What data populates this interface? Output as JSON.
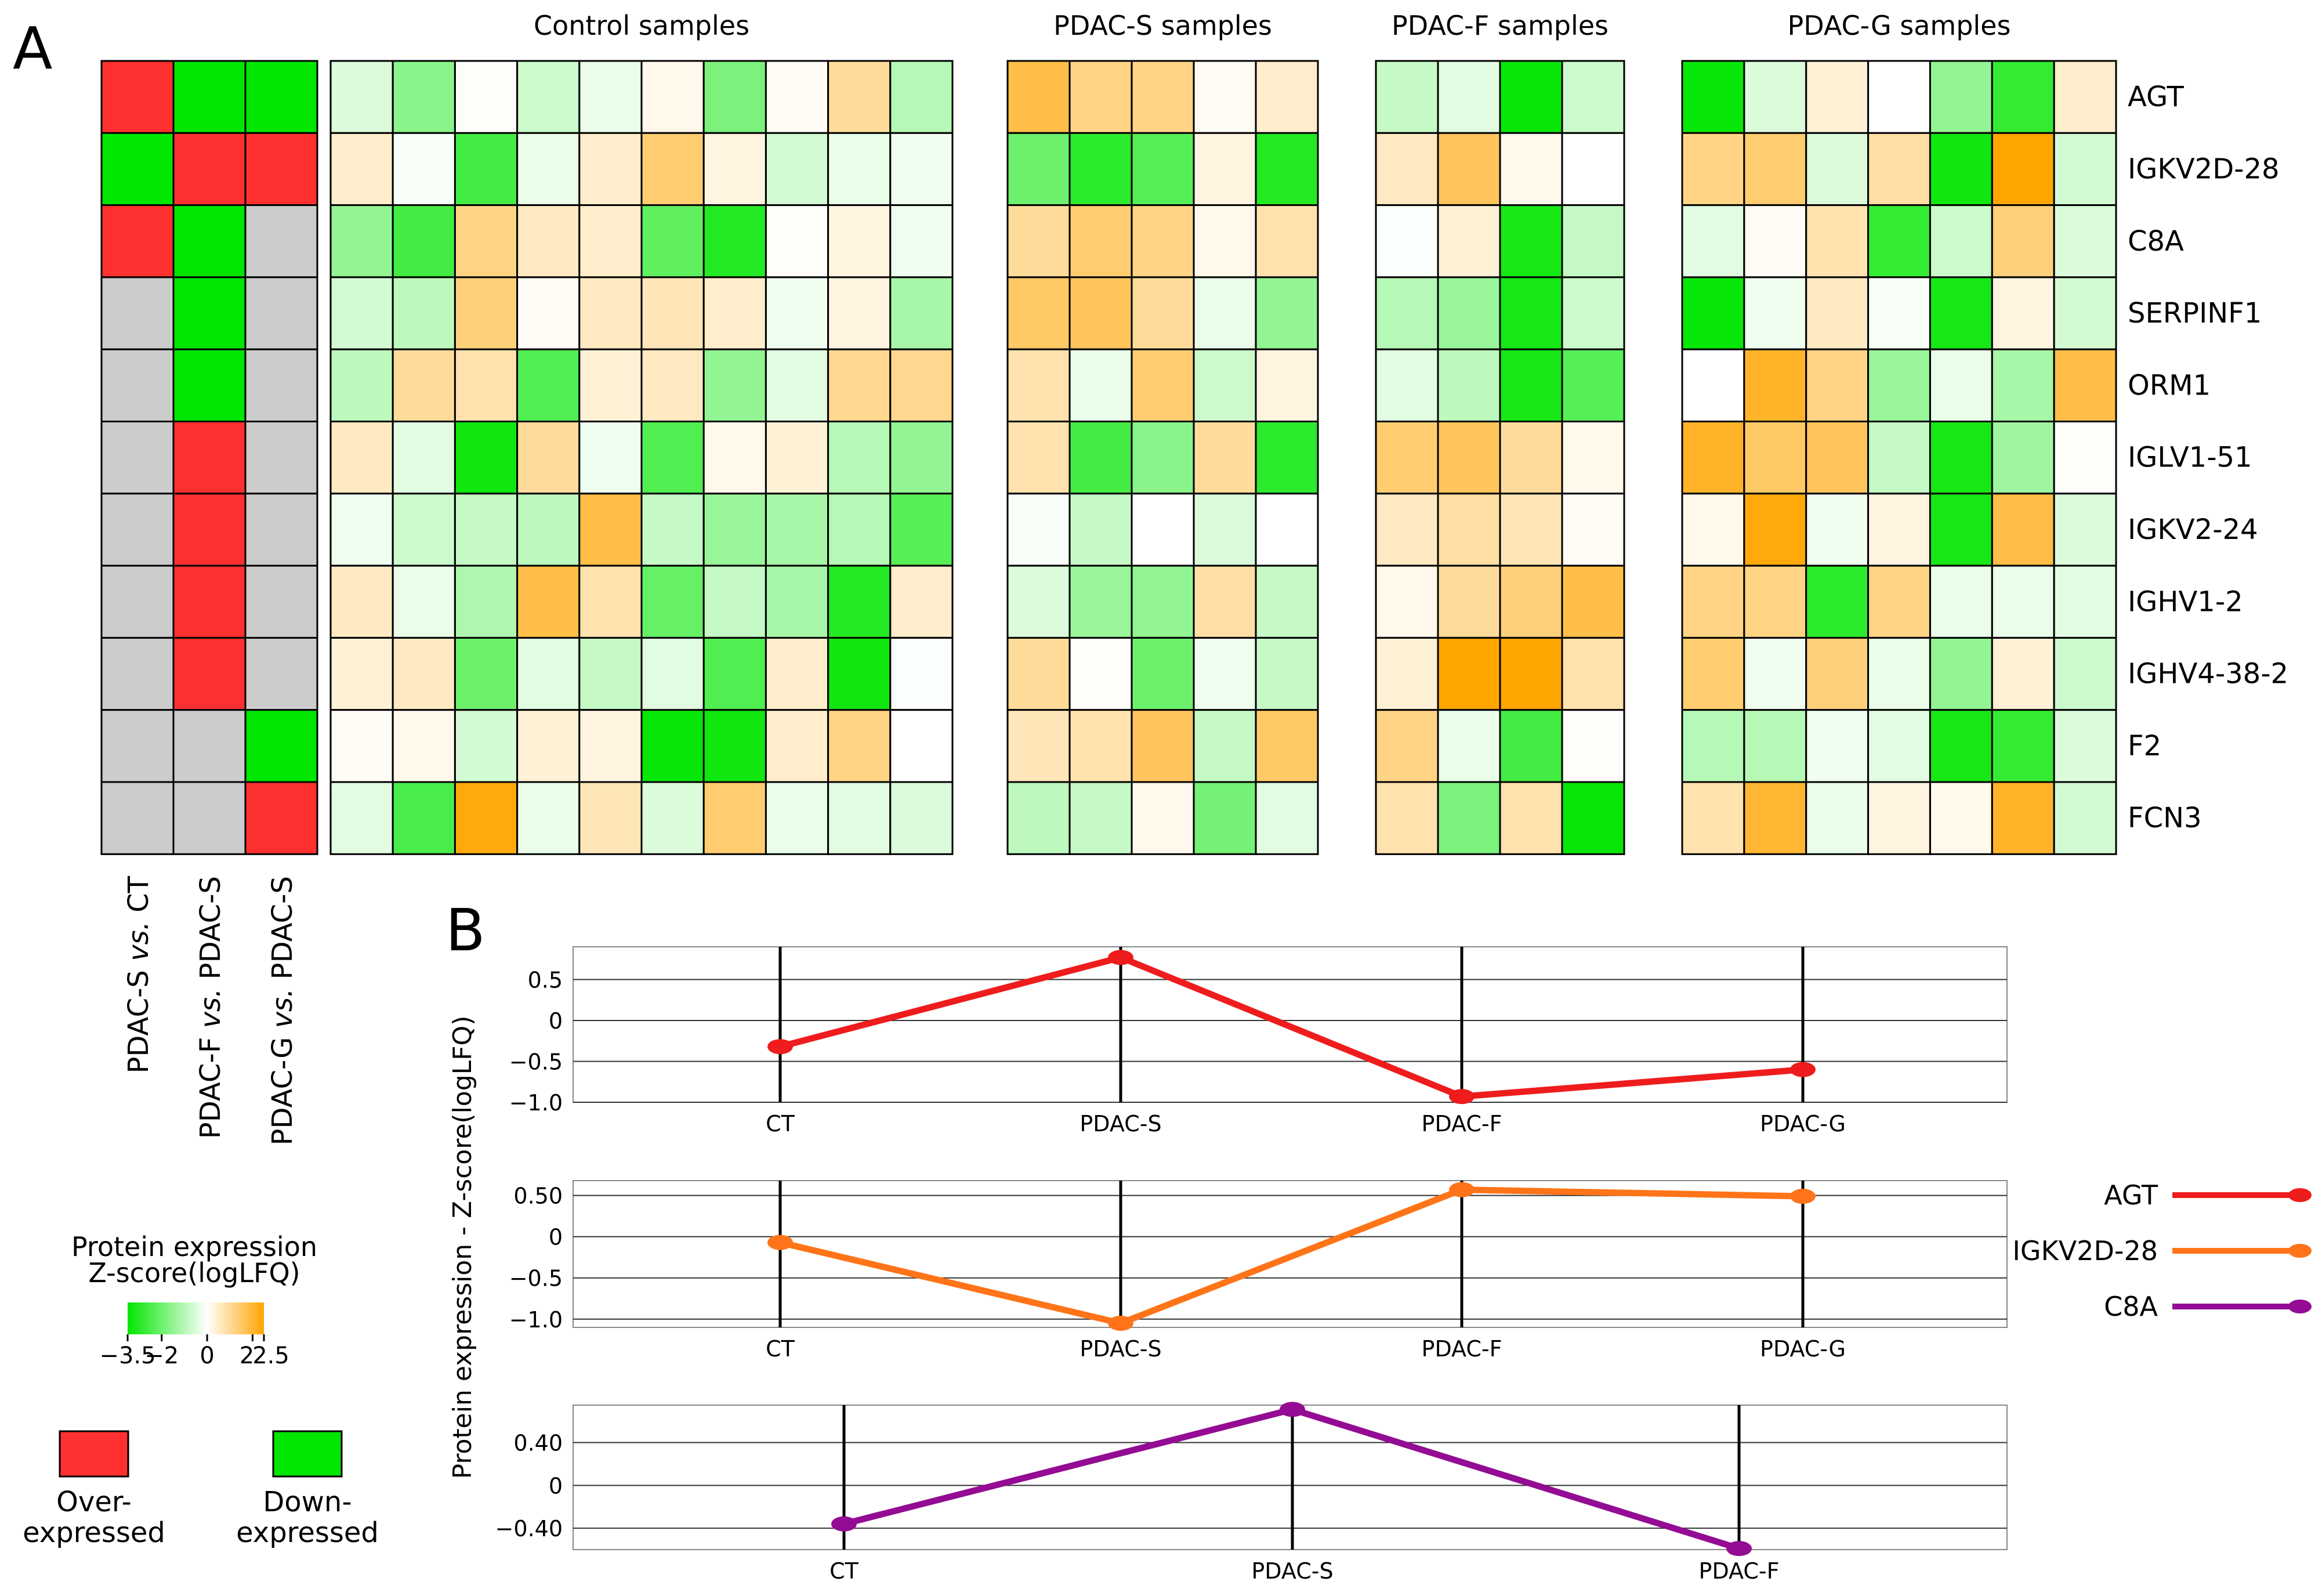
{
  "panel_labels": {
    "a": "A",
    "b": "B"
  },
  "colors": {
    "over": "#ff3030",
    "down": "#00e600",
    "neutral": "#cccccc",
    "agt": "#ee1c1c",
    "igkv": "#ff7418",
    "c8a": "#930c93",
    "green_strong": "#00ff00",
    "orange_strong": "#ffa500"
  },
  "legend": {
    "title_line1": "Protein expression",
    "title_line2": "Z-score(logLFQ)",
    "colorbar_ticks": [
      "−3.5",
      "−2",
      "0",
      "2",
      "2.5"
    ],
    "over_label_1": "Over-",
    "over_label_2": "expressed",
    "down_label_1": "Down-",
    "down_label_2": "expressed"
  },
  "comparisons": [
    {
      "a": "PDAC-S ",
      "vs": "vs.",
      "b": " CT"
    },
    {
      "a": "PDAC-F ",
      "vs": "vs.",
      "b": " PDAC-S"
    },
    {
      "a": "PDAC-G ",
      "vs": "vs.",
      "b": " PDAC-S"
    }
  ],
  "status_rows": [
    [
      "over",
      "down",
      "down"
    ],
    [
      "down",
      "over",
      "over"
    ],
    [
      "over",
      "down",
      "none"
    ],
    [
      "none",
      "down",
      "none"
    ],
    [
      "none",
      "down",
      "none"
    ],
    [
      "none",
      "over",
      "none"
    ],
    [
      "none",
      "over",
      "none"
    ],
    [
      "none",
      "over",
      "none"
    ],
    [
      "none",
      "over",
      "none"
    ],
    [
      "none",
      "none",
      "down"
    ],
    [
      "none",
      "none",
      "over"
    ]
  ],
  "chart_data": [
    {
      "type": "heatmap",
      "title": "Protein expression Z-score(logLFQ)",
      "color_range": [
        -3.5,
        2.5
      ],
      "proteins": [
        "AGT",
        "IGKV2D-28",
        "C8A",
        "SERPINF1",
        "ORM1",
        "IGLV1-51",
        "IGKV2-24",
        "IGHV1-2",
        "IGHV4-38-2",
        "F2",
        "FCN3"
      ],
      "groups": [
        {
          "name": "Control samples",
          "values": [
            [
              -0.5,
              -1.6,
              0.05,
              -0.7,
              -0.3,
              0.2,
              -1.8,
              0.1,
              1.0,
              -1.0
            ],
            [
              0.5,
              -0.1,
              -2.6,
              -0.3,
              0.5,
              1.4,
              0.3,
              -0.6,
              -0.3,
              -0.2
            ],
            [
              -1.5,
              -2.6,
              1.2,
              0.6,
              0.5,
              -2.2,
              -3.0,
              0.05,
              0.3,
              -0.2
            ],
            [
              -0.6,
              -0.9,
              1.3,
              0.1,
              0.6,
              0.7,
              0.5,
              -0.2,
              0.3,
              -1.2
            ],
            [
              -0.9,
              1.0,
              0.8,
              -2.4,
              0.4,
              0.6,
              -1.5,
              -0.4,
              1.1,
              1.1
            ],
            [
              0.6,
              -0.4,
              -3.3,
              1.0,
              -0.2,
              -2.4,
              0.2,
              0.4,
              -1.0,
              -1.5
            ],
            [
              -0.2,
              -0.7,
              -0.8,
              -0.9,
              1.8,
              -0.8,
              -1.4,
              -1.2,
              -1.0,
              -2.3
            ],
            [
              0.6,
              -0.3,
              -1.1,
              1.8,
              0.8,
              -2.1,
              -0.8,
              -1.2,
              -3.0,
              0.5
            ],
            [
              0.4,
              0.6,
              -2.0,
              -0.4,
              -0.8,
              -0.4,
              -2.4,
              0.5,
              -3.3,
              -0.05
            ],
            [
              0.1,
              0.2,
              -0.6,
              0.4,
              0.3,
              -3.4,
              -3.3,
              0.5,
              1.2,
              -0.02
            ],
            [
              -0.4,
              -2.5,
              2.4,
              -0.3,
              0.7,
              -0.5,
              1.4,
              -0.3,
              -0.4,
              -0.5
            ]
          ]
        },
        {
          "name": "PDAC-S samples",
          "values": [
            [
              1.8,
              1.2,
              1.2,
              0.1,
              0.5
            ],
            [
              -2.0,
              -2.9,
              -2.3,
              0.3,
              -3.0
            ],
            [
              1.0,
              1.4,
              1.2,
              0.2,
              0.8
            ],
            [
              1.5,
              1.6,
              1.0,
              -0.3,
              -1.5
            ],
            [
              0.8,
              -0.3,
              1.4,
              -0.7,
              0.3
            ],
            [
              0.8,
              -2.6,
              -1.6,
              1.0,
              -2.9
            ],
            [
              -0.1,
              -0.8,
              0.0,
              -0.5,
              0.0
            ],
            [
              -0.5,
              -1.4,
              -1.5,
              0.9,
              -0.8
            ],
            [
              1.0,
              0.05,
              -2.0,
              -0.2,
              -0.8
            ],
            [
              0.7,
              0.8,
              1.6,
              -0.8,
              1.5
            ],
            [
              -0.9,
              -0.8,
              0.2,
              -1.9,
              -0.4
            ]
          ]
        },
        {
          "name": "PDAC-F samples",
          "values": [
            [
              -0.8,
              -0.4,
              -3.4,
              -0.7
            ],
            [
              0.6,
              1.6,
              0.2,
              0.0
            ],
            [
              -0.05,
              0.4,
              -3.2,
              -0.8
            ],
            [
              -1.0,
              -1.4,
              -3.2,
              -0.7
            ],
            [
              -0.4,
              -0.9,
              -3.2,
              -2.3
            ],
            [
              1.4,
              1.6,
              1.0,
              0.2
            ],
            [
              0.6,
              0.9,
              0.7,
              0.1
            ],
            [
              0.2,
              1.0,
              1.3,
              1.8
            ],
            [
              0.4,
              2.5,
              2.5,
              0.8
            ],
            [
              1.2,
              -0.3,
              -2.6,
              0.05
            ],
            [
              0.8,
              -1.8,
              0.8,
              -3.4
            ]
          ]
        },
        {
          "name": "PDAC-G samples",
          "values": [
            [
              -3.4,
              -0.5,
              0.4,
              0.0,
              -1.5,
              -2.8,
              0.5
            ],
            [
              1.2,
              1.4,
              -0.5,
              0.9,
              -3.3,
              2.5,
              -0.6
            ],
            [
              -0.4,
              0.1,
              0.8,
              -2.8,
              -0.7,
              1.3,
              -0.5
            ],
            [
              -3.4,
              -0.2,
              0.6,
              -0.1,
              -3.2,
              0.3,
              -0.6
            ],
            [
              0.0,
              2.1,
              1.2,
              -1.4,
              -0.3,
              -1.2,
              1.8
            ],
            [
              2.1,
              1.5,
              1.6,
              -0.8,
              -3.2,
              -1.3,
              0.05
            ],
            [
              0.2,
              2.4,
              -0.2,
              0.3,
              -3.2,
              1.8,
              -0.5
            ],
            [
              1.2,
              1.2,
              -2.9,
              1.2,
              -0.3,
              -0.3,
              -0.4
            ],
            [
              1.4,
              -0.2,
              1.3,
              -0.3,
              -1.5,
              0.4,
              -0.7
            ],
            [
              -1.0,
              -1.0,
              -0.2,
              -0.4,
              -3.2,
              -2.8,
              -0.5
            ],
            [
              0.8,
              2.0,
              -0.3,
              0.3,
              0.2,
              2.1,
              -0.6
            ]
          ]
        }
      ]
    },
    {
      "type": "line",
      "ylabel": "Protein expression - Z-score(logLFQ)",
      "panels": [
        {
          "series": "AGT",
          "categories": [
            "CT",
            "PDAC-S",
            "PDAC-F",
            "PDAC-G"
          ],
          "values": [
            -0.32,
            0.77,
            -0.93,
            -0.6
          ],
          "ylim": [
            -1.0,
            0.9
          ],
          "yticks": [
            0.5,
            0,
            -0.5,
            -1.0
          ],
          "yticklabels": [
            "0.5",
            "0",
            "−0.5",
            "−1.0"
          ]
        },
        {
          "series": "IGKV2D-28",
          "categories": [
            "CT",
            "PDAC-S",
            "PDAC-F",
            "PDAC-G"
          ],
          "values": [
            -0.07,
            -1.05,
            0.57,
            0.49
          ],
          "ylim": [
            -1.1,
            0.68
          ],
          "yticks": [
            0.5,
            0,
            -0.5,
            -1.0
          ],
          "yticklabels": [
            "0.50",
            "0",
            "−0.5",
            "−1.0"
          ]
        },
        {
          "series": "C8A",
          "categories": [
            "CT",
            "PDAC-S",
            "PDAC-F"
          ],
          "values": [
            -0.36,
            0.71,
            -0.59
          ],
          "ylim": [
            -0.6,
            0.75
          ],
          "yticks": [
            0.4,
            0,
            -0.4
          ],
          "yticklabels": [
            "0.40",
            "0",
            "−0.40"
          ]
        }
      ],
      "legend": [
        "AGT",
        "IGKV2D-28",
        "C8A"
      ]
    }
  ]
}
